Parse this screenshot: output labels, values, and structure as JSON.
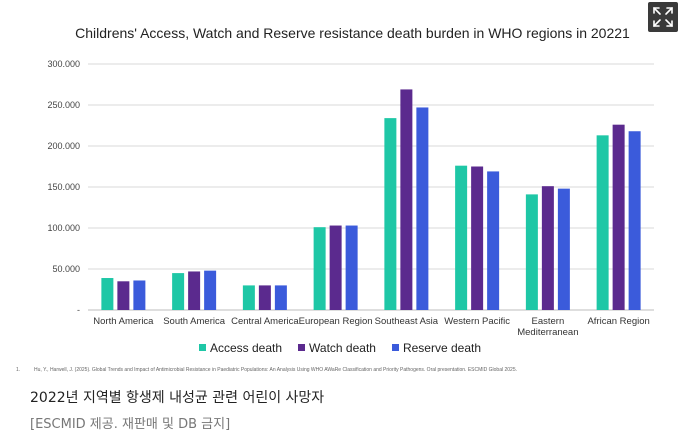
{
  "chart_data": {
    "type": "bar",
    "title": "Childrens' Access, Watch and Reserve resistance death burden in WHO regions in 20221",
    "categories": [
      "North America",
      "South America",
      "Central America",
      "European Region",
      "Southeast Asia",
      "Western Pacific",
      "Eastern Mediterranean",
      "African Region"
    ],
    "series": [
      {
        "name": "Access death",
        "color": "#1ec7a6",
        "values": [
          39000,
          45000,
          30000,
          101000,
          234000,
          176000,
          141000,
          213000
        ]
      },
      {
        "name": "Watch death",
        "color": "#5b2a8e",
        "values": [
          35000,
          47000,
          30000,
          103000,
          269000,
          175000,
          151000,
          226000
        ]
      },
      {
        "name": "Reserve death",
        "color": "#3b5bdb",
        "values": [
          36000,
          48000,
          30000,
          103000,
          247000,
          169000,
          148000,
          218000
        ]
      }
    ],
    "yticks": [
      "-",
      "50.000",
      "100.000",
      "150.000",
      "200.000",
      "250.000",
      "300.000"
    ],
    "ylim": [
      0,
      300000
    ],
    "grid": true,
    "legend_position": "bottom"
  },
  "footnote": {
    "number": "1.",
    "text": "Hu, Y., Harwell, J. (2025). Global Trends and Impact of Antimicrobial Resistance in Paediatric Populations: An Analysis Using WHO AWaRe Classification and Priority Pathogens. Oral presentation. ESCMID Global 2025."
  },
  "caption": {
    "title": "2022년 지역별 항생제 내성균 관련 어린이 사망자",
    "credit": "[ESCMID 제공. 재판매 및 DB 금지]"
  },
  "controls": {
    "expand_icon": "expand-icon"
  }
}
